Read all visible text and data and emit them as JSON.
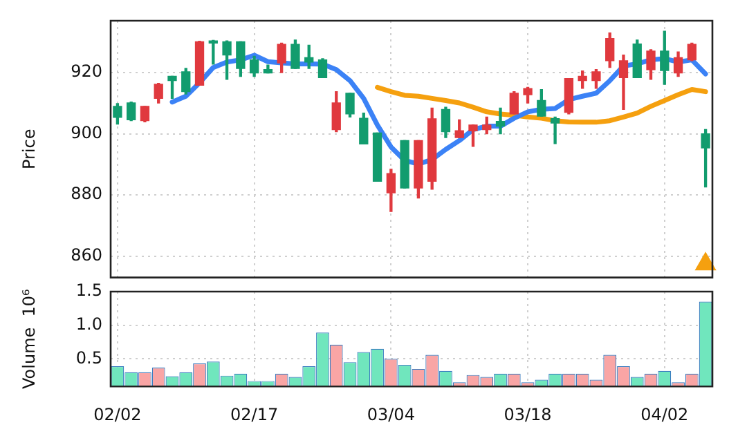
{
  "chart_data": [
    {
      "type": "candlestick",
      "ylabel": "Price",
      "categories": [
        null,
        null,
        null,
        null,
        null,
        null,
        null,
        null,
        null,
        null,
        null,
        null,
        null,
        null,
        null,
        null,
        null,
        null,
        null,
        null,
        null,
        null,
        null,
        null,
        null,
        null,
        null,
        null,
        null,
        null,
        null,
        null,
        null,
        null,
        null,
        null,
        null,
        null,
        null,
        null,
        null,
        null,
        null,
        null
      ],
      "ohlc": [
        [
          905.4,
          909.9,
          903.2,
          909.0
        ],
        [
          904.6,
          910.4,
          904.3,
          910.1
        ],
        [
          909.0,
          909.0,
          903.9,
          904.3
        ],
        [
          916.2,
          916.5,
          910.1,
          911.6
        ],
        [
          917.4,
          918.8,
          911.6,
          918.8
        ],
        [
          913.8,
          921.4,
          913.0,
          920.3
        ],
        [
          930.1,
          930.3,
          915.9,
          915.9
        ],
        [
          929.7,
          930.6,
          922.8,
          930.4
        ],
        [
          925.8,
          930.4,
          917.8,
          930.1
        ],
        [
          921.4,
          930.1,
          918.8,
          930.1
        ],
        [
          919.9,
          925.4,
          918.8,
          924.2
        ],
        [
          919.9,
          922.5,
          919.9,
          921.0
        ],
        [
          929.3,
          929.7,
          920.0,
          923.2
        ],
        [
          921.4,
          930.7,
          921.4,
          929.3
        ],
        [
          923.5,
          929.0,
          921.4,
          924.9
        ],
        [
          918.4,
          924.6,
          918.4,
          924.2
        ],
        [
          910.1,
          913.8,
          900.7,
          901.4
        ],
        [
          906.5,
          913.3,
          905.5,
          913.3
        ],
        [
          896.7,
          906.8,
          896.7,
          905.1
        ],
        [
          884.5,
          900.3,
          884.5,
          900.3
        ],
        [
          887.0,
          888.4,
          874.6,
          880.7
        ],
        [
          882.3,
          897.8,
          882.3,
          897.8
        ],
        [
          897.8,
          897.8,
          879.0,
          882.3
        ],
        [
          904.9,
          908.4,
          881.9,
          884.5
        ],
        [
          900.7,
          908.7,
          898.8,
          908.0
        ],
        [
          901.0,
          904.6,
          898.8,
          898.8
        ],
        [
          902.9,
          902.9,
          895.9,
          901.0
        ],
        [
          902.9,
          905.5,
          900.0,
          901.4
        ],
        [
          902.5,
          908.4,
          900.0,
          904.1
        ],
        [
          913.3,
          913.8,
          906.5,
          906.5
        ],
        [
          914.8,
          915.2,
          910.1,
          912.8
        ],
        [
          905.8,
          914.5,
          905.8,
          910.9
        ],
        [
          903.5,
          905.5,
          896.8,
          905.0
        ],
        [
          918.1,
          918.1,
          906.5,
          907.0
        ],
        [
          918.8,
          920.6,
          914.9,
          917.4
        ],
        [
          920.3,
          921.0,
          914.9,
          917.4
        ],
        [
          931.2,
          933.0,
          921.7,
          923.9
        ],
        [
          923.9,
          925.8,
          908.0,
          918.4
        ],
        [
          918.4,
          930.7,
          918.4,
          929.4
        ],
        [
          927.1,
          927.5,
          917.8,
          921.0
        ],
        [
          920.7,
          933.6,
          916.2,
          927.1
        ],
        [
          924.9,
          926.8,
          918.8,
          919.9
        ],
        [
          929.3,
          929.7,
          923.9,
          924.2
        ],
        [
          895.4,
          901.4,
          882.6,
          900.0
        ]
      ],
      "colors": [
        "#129c6e",
        "#129c6e",
        "#e0393e",
        "#e0393e",
        "#129c6e",
        "#129c6e",
        "#e0393e",
        "#129c6e",
        "#129c6e",
        "#129c6e",
        "#129c6e",
        "#129c6e",
        "#e0393e",
        "#129c6e",
        "#129c6e",
        "#129c6e",
        "#e0393e",
        "#129c6e",
        "#129c6e",
        "#129c6e",
        "#e0393e",
        "#129c6e",
        "#e0393e",
        "#e0393e",
        "#129c6e",
        "#e0393e",
        "#e0393e",
        "#e0393e",
        "#129c6e",
        "#e0393e",
        "#e0393e",
        "#129c6e",
        "#129c6e",
        "#e0393e",
        "#e0393e",
        "#e0393e",
        "#e0393e",
        "#e0393e",
        "#129c6e",
        "#e0393e",
        "#129c6e",
        "#e0393e",
        "#e0393e",
        "#129c6e"
      ],
      "series": [
        {
          "type": "line",
          "color": "#3b82f6",
          "values": [
            null,
            null,
            null,
            null,
            910.4,
            912.3,
            916.7,
            921.7,
            923.5,
            924.2,
            925.7,
            923.6,
            923.2,
            922.9,
            922.9,
            922.8,
            921.0,
            917.4,
            911.6,
            902.9,
            895.7,
            891.3,
            890.1,
            891.6,
            894.9,
            897.8,
            901.4,
            902.5,
            902.5,
            905.1,
            907.2,
            908.0,
            908.3,
            911.2,
            912.3,
            913.3,
            917.4,
            922.2,
            922.9,
            924.2,
            924.6,
            923.5,
            924.2,
            919.6
          ]
        },
        {
          "type": "line",
          "color": "#f5a00f",
          "values": [
            null,
            null,
            null,
            null,
            null,
            null,
            null,
            null,
            null,
            null,
            null,
            null,
            null,
            null,
            null,
            null,
            null,
            null,
            null,
            915.2,
            913.8,
            912.6,
            912.3,
            911.6,
            910.9,
            910.1,
            908.7,
            907.2,
            906.5,
            906.1,
            905.5,
            905.1,
            904.3,
            903.9,
            903.8,
            903.8,
            904.3,
            905.5,
            906.8,
            909.0,
            910.9,
            912.8,
            914.5,
            913.8
          ]
        },
        {
          "type": "scatter",
          "marker": "triangle",
          "color": "#f5a00f",
          "values": [
            null,
            null,
            null,
            null,
            null,
            null,
            null,
            null,
            null,
            null,
            null,
            null,
            null,
            null,
            null,
            null,
            null,
            null,
            null,
            null,
            null,
            null,
            null,
            null,
            null,
            null,
            null,
            null,
            null,
            null,
            null,
            null,
            null,
            null,
            null,
            null,
            null,
            null,
            null,
            null,
            null,
            null,
            null,
            857.4
          ]
        }
      ],
      "ylim": [
        853,
        937
      ],
      "yticks": [
        860,
        880,
        900,
        920
      ],
      "grid": true,
      "tick_labels": "y"
    },
    {
      "type": "bar",
      "ylabel": "Volume  10⁶",
      "categories": [
        "02/02",
        null,
        null,
        null,
        null,
        null,
        null,
        null,
        null,
        null,
        "02/17",
        null,
        null,
        null,
        null,
        null,
        null,
        null,
        null,
        null,
        "03/04",
        null,
        null,
        null,
        null,
        null,
        null,
        null,
        null,
        null,
        "03/18",
        null,
        null,
        null,
        null,
        null,
        null,
        null,
        null,
        null,
        "04/02",
        null,
        null,
        null
      ],
      "values": [
        0.39,
        0.3,
        0.3,
        0.37,
        0.24,
        0.3,
        0.43,
        0.46,
        0.25,
        0.28,
        0.17,
        0.17,
        0.28,
        0.23,
        0.39,
        0.89,
        0.71,
        0.45,
        0.6,
        0.65,
        0.5,
        0.41,
        0.35,
        0.56,
        0.32,
        0.15,
        0.26,
        0.23,
        0.28,
        0.28,
        0.15,
        0.19,
        0.28,
        0.28,
        0.28,
        0.19,
        0.56,
        0.39,
        0.23,
        0.28,
        0.32,
        0.15,
        0.28,
        1.35
      ],
      "colors": [
        "#70e6bd",
        "#70e6bd",
        "#f9a5a5",
        "#f9a5a5",
        "#70e6bd",
        "#70e6bd",
        "#f9a5a5",
        "#70e6bd",
        "#70e6bd",
        "#70e6bd",
        "#70e6bd",
        "#70e6bd",
        "#f9a5a5",
        "#70e6bd",
        "#70e6bd",
        "#70e6bd",
        "#f9a5a5",
        "#70e6bd",
        "#70e6bd",
        "#70e6bd",
        "#f9a5a5",
        "#70e6bd",
        "#f9a5a5",
        "#f9a5a5",
        "#70e6bd",
        "#f9a5a5",
        "#f9a5a5",
        "#f9a5a5",
        "#70e6bd",
        "#f9a5a5",
        "#f9a5a5",
        "#70e6bd",
        "#70e6bd",
        "#f9a5a5",
        "#f9a5a5",
        "#f9a5a5",
        "#f9a5a5",
        "#f9a5a5",
        "#70e6bd",
        "#f9a5a5",
        "#70e6bd",
        "#f9a5a5",
        "#f9a5a5",
        "#70e6bd"
      ],
      "ylim": [
        0.09,
        1.5
      ],
      "yticks": [
        0.5,
        {
          "value": 1,
          "label": "1.0"
        },
        1.5
      ],
      "grid": true
    }
  ]
}
